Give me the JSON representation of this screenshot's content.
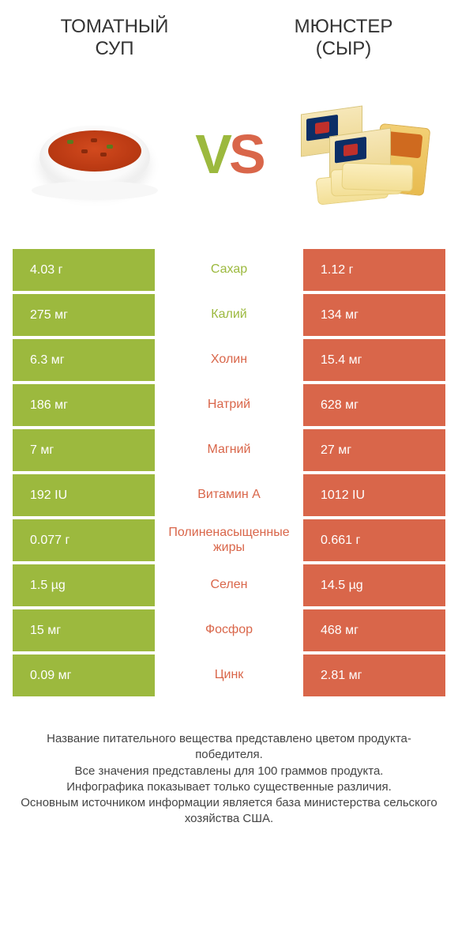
{
  "colors": {
    "left_bg": "#9cb93e",
    "right_bg": "#d9664a",
    "left_text": "#9cb93e",
    "right_text": "#d9664a",
    "cell_text": "#ffffff"
  },
  "header": {
    "left_title": "ТОМАТНЫЙ\nСУП",
    "right_title": "МЮНСТЕР\n(СЫР)"
  },
  "vs": {
    "v": "V",
    "s": "S"
  },
  "rows": [
    {
      "left": "4.03 г",
      "label": "Сахар",
      "right": "1.12 г",
      "winner": "left"
    },
    {
      "left": "275 мг",
      "label": "Калий",
      "right": "134 мг",
      "winner": "left"
    },
    {
      "left": "6.3 мг",
      "label": "Холин",
      "right": "15.4 мг",
      "winner": "right"
    },
    {
      "left": "186 мг",
      "label": "Натрий",
      "right": "628 мг",
      "winner": "right"
    },
    {
      "left": "7 мг",
      "label": "Магний",
      "right": "27 мг",
      "winner": "right"
    },
    {
      "left": "192 IU",
      "label": "Витамин A",
      "right": "1012 IU",
      "winner": "right"
    },
    {
      "left": "0.077 г",
      "label": "Полиненасыщенные жиры",
      "right": "0.661 г",
      "winner": "right"
    },
    {
      "left": "1.5 µg",
      "label": "Селен",
      "right": "14.5 µg",
      "winner": "right"
    },
    {
      "left": "15 мг",
      "label": "Фосфор",
      "right": "468 мг",
      "winner": "right"
    },
    {
      "left": "0.09 мг",
      "label": "Цинк",
      "right": "2.81 мг",
      "winner": "right"
    }
  ],
  "footer": {
    "line1": "Название питательного вещества представлено цветом продукта-победителя.",
    "line2": "Все значения представлены для 100 граммов продукта.",
    "line3": "Инфографика показывает только существенные различия.",
    "line4": "Основным источником информации является база министерства сельского хозяйства США."
  }
}
